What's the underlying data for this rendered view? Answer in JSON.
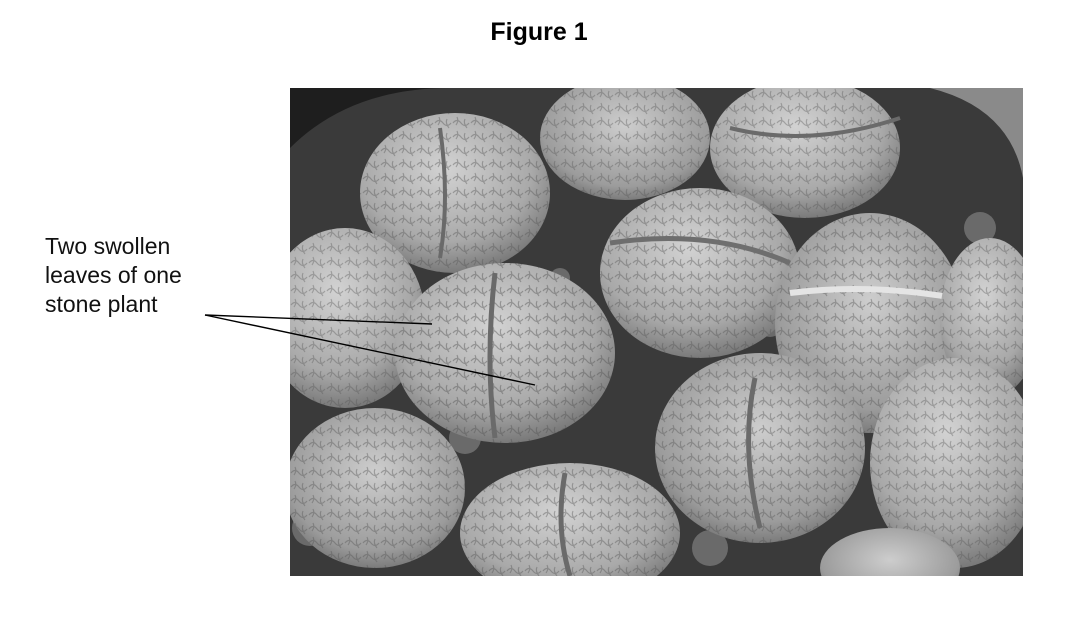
{
  "figure": {
    "title": "Figure 1",
    "photo_description_icon": "stone-plant-photo",
    "callout_lines": [
      "Two swollen",
      "leaves of one",
      "stone plant"
    ]
  },
  "colors": {
    "background": "#ffffff",
    "text": "#000000",
    "leaf_light": "#c9c9c9",
    "leaf_dark": "#5a5a5a",
    "soil": "#2e2e2e"
  }
}
